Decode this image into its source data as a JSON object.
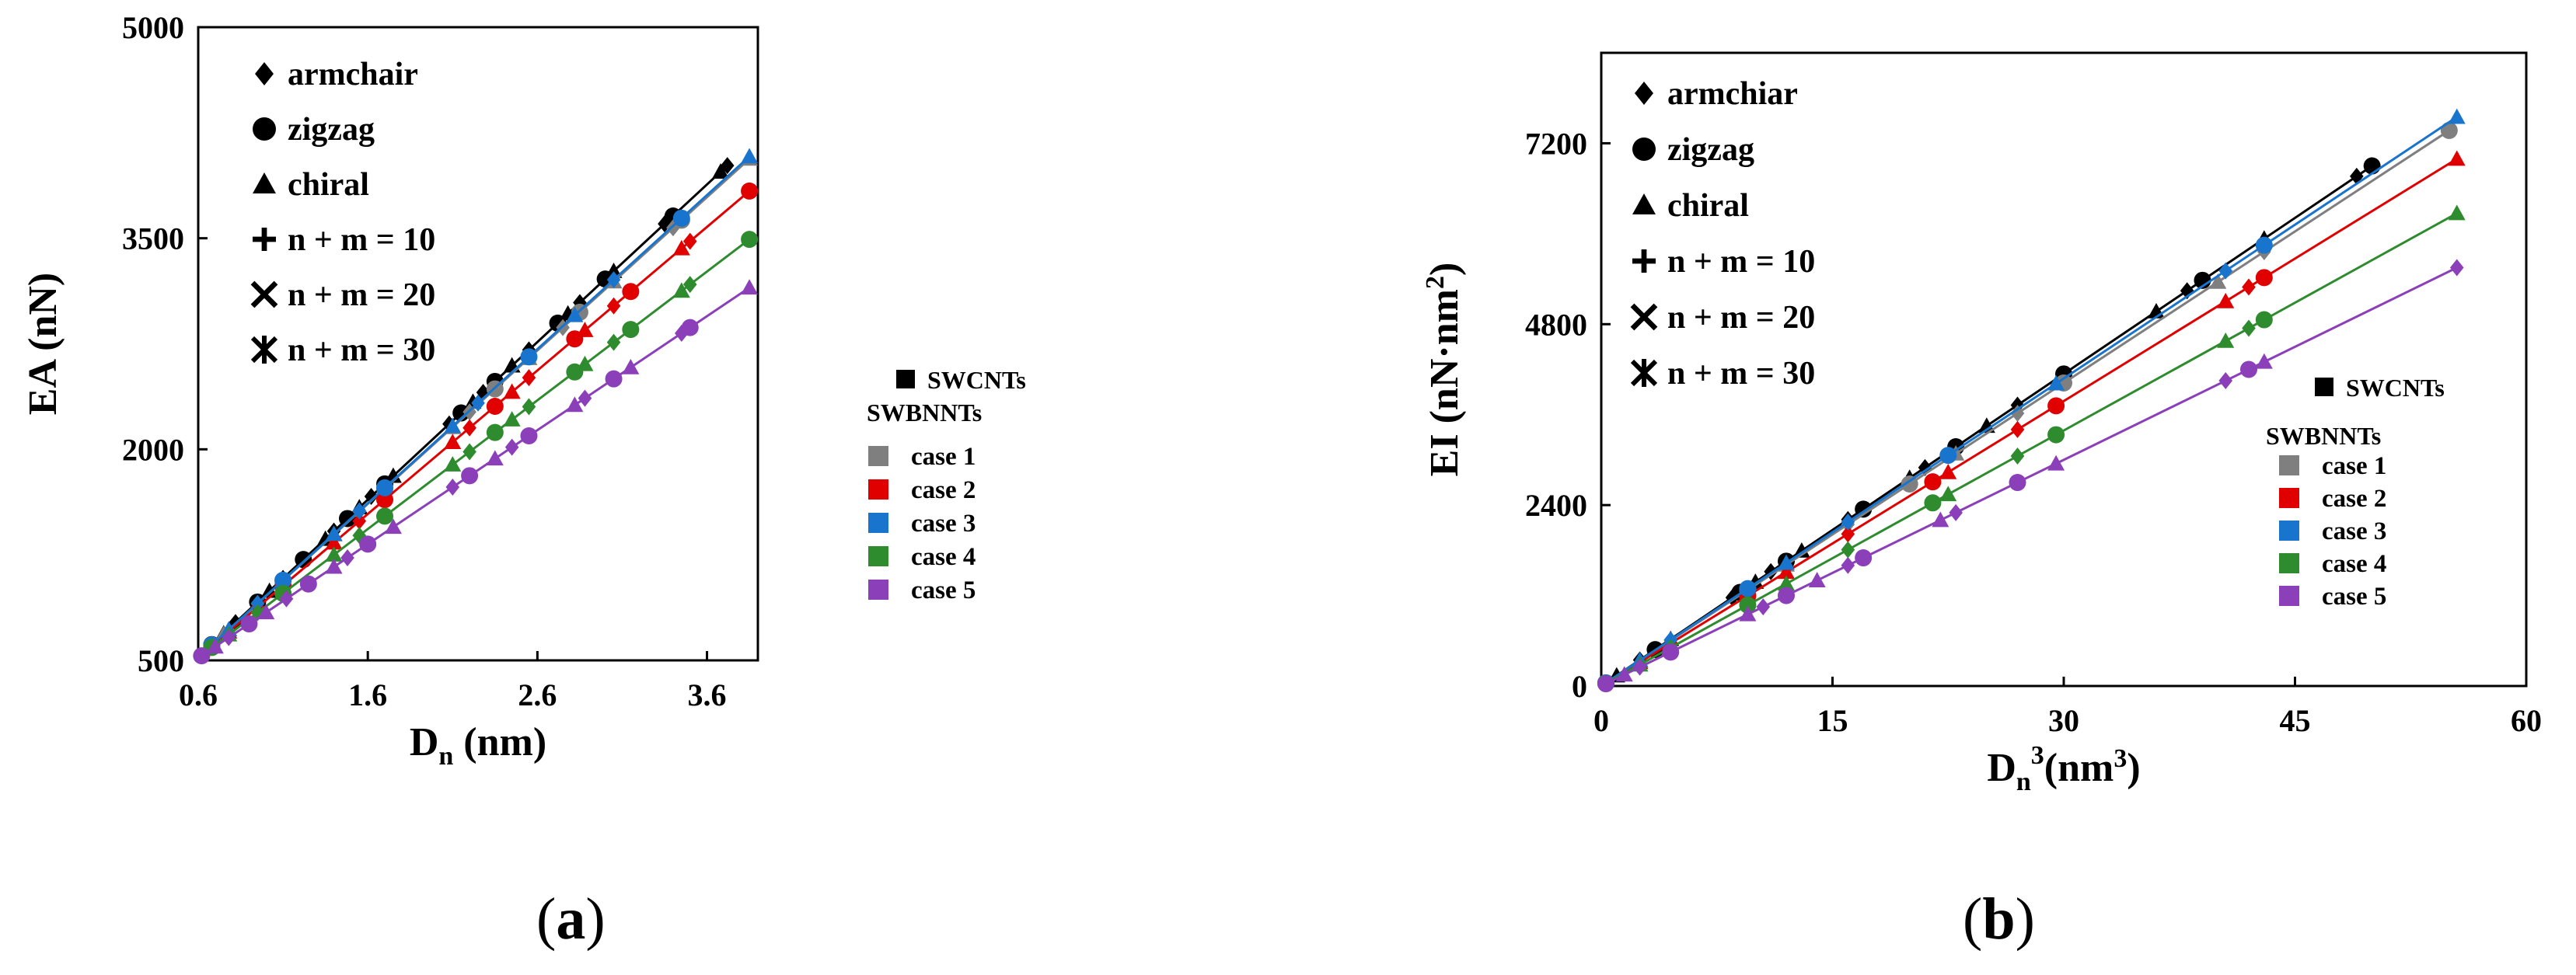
{
  "figure": {
    "panel_a_label_open": "(",
    "panel_a_label_letter": "a",
    "panel_a_label_close": ")",
    "panel_b_label_open": "(",
    "panel_b_label_letter": "b",
    "panel_b_label_close": ")"
  },
  "chart_data": [
    {
      "id": "a",
      "type": "scatter",
      "title": "",
      "ylabel": "EA (nN)",
      "xlabel_main": "D",
      "xlabel_sub": "n",
      "xlabel_rest": " (nm)",
      "xlim": [
        0.6,
        3.9
      ],
      "ylim": [
        500,
        5000
      ],
      "xticks": [
        "0.6",
        "1.6",
        "2.6",
        "3.6"
      ],
      "xtick_values": [
        0.6,
        1.6,
        2.6,
        3.6
      ],
      "yticks": [
        "500",
        "2000",
        "3500",
        "5000"
      ],
      "ytick_values": [
        500,
        2000,
        3500,
        5000
      ],
      "grid": false,
      "legend_markers": [
        {
          "symbol": "diamond",
          "label": "armchair"
        },
        {
          "symbol": "circle",
          "label": "zigzag"
        },
        {
          "symbol": "triangle",
          "label": "chiral"
        },
        {
          "symbol": "plus",
          "label": "n + m = 10"
        },
        {
          "symbol": "cross",
          "label": "n + m = 20"
        },
        {
          "symbol": "star",
          "label": "n + m = 30"
        }
      ],
      "legend_series_title_1": "SWCNTs",
      "legend_series_title_2": "SWBNNTs",
      "series": [
        {
          "name": "SWCNTs",
          "color": "#000000",
          "slope": 1120,
          "x": [
            0.68,
            0.75,
            0.82,
            0.95,
            1.02,
            1.1,
            1.22,
            1.35,
            1.4,
            1.48,
            1.55,
            1.62,
            1.7,
            1.75,
            2.08,
            2.15,
            2.22,
            2.28,
            2.35,
            2.45,
            2.55,
            2.72,
            2.78,
            2.85,
            3.0,
            3.05,
            3.35,
            3.4,
            3.68,
            3.72
          ]
        },
        {
          "name": "case 1",
          "color": "#7f7f7f",
          "slope": 1090,
          "x": [
            0.68,
            0.75,
            0.95,
            1.1,
            1.4,
            1.55,
            1.7,
            2.1,
            2.2,
            2.35,
            2.55,
            2.75,
            2.85,
            3.05,
            3.4,
            3.45,
            3.85
          ]
        },
        {
          "name": "case 2",
          "color": "#e00000",
          "slope": 1020,
          "x": [
            0.68,
            0.78,
            0.95,
            1.1,
            1.4,
            1.55,
            1.7,
            2.1,
            2.2,
            2.35,
            2.45,
            2.55,
            2.82,
            2.88,
            3.05,
            3.15,
            3.45,
            3.5,
            3.85
          ]
        },
        {
          "name": "case 3",
          "color": "#1874cd",
          "slope": 1095,
          "x": [
            0.68,
            0.78,
            0.95,
            1.1,
            1.4,
            1.55,
            1.7,
            2.1,
            2.25,
            2.55,
            2.82,
            3.05,
            3.45,
            3.85
          ]
        },
        {
          "name": "case 4",
          "color": "#2e8b2e",
          "slope": 915,
          "x": [
            0.68,
            0.78,
            0.95,
            1.1,
            1.4,
            1.55,
            1.7,
            2.1,
            2.2,
            2.35,
            2.45,
            2.55,
            2.82,
            2.88,
            3.05,
            3.15,
            3.45,
            3.5,
            3.85
          ]
        },
        {
          "name": "case 5",
          "color": "#8b3fb8",
          "slope": 810,
          "x": [
            0.62,
            0.7,
            0.78,
            0.9,
            1.0,
            1.12,
            1.25,
            1.4,
            1.48,
            1.6,
            1.75,
            2.1,
            2.2,
            2.35,
            2.45,
            2.55,
            2.82,
            2.88,
            3.05,
            3.15,
            3.45,
            3.5,
            3.85
          ]
        }
      ]
    },
    {
      "id": "b",
      "type": "scatter",
      "title": "",
      "ylabel": "EI (nN·nm",
      "ylabel_sup": "2",
      "ylabel_close": ")",
      "xlabel_main": "D",
      "xlabel_sub": "n",
      "xlabel_sup": "3",
      "xlabel_rest": "(nm",
      "xlabel_sup2": "3",
      "xlabel_close": ")",
      "xlim": [
        0,
        60
      ],
      "ylim": [
        0,
        8400
      ],
      "xticks": [
        "0",
        "15",
        "30",
        "45",
        "60"
      ],
      "xtick_values": [
        0,
        15,
        30,
        45,
        60
      ],
      "yticks": [
        "0",
        "2400",
        "4800",
        "7200"
      ],
      "ytick_values": [
        0,
        2400,
        4800,
        7200
      ],
      "grid": false,
      "legend_markers": [
        {
          "symbol": "diamond",
          "label": "armchiar"
        },
        {
          "symbol": "circle",
          "label": "zigzag"
        },
        {
          "symbol": "triangle",
          "label": "chiral"
        },
        {
          "symbol": "plus",
          "label": "n + m = 10"
        },
        {
          "symbol": "cross",
          "label": "n + m = 20"
        },
        {
          "symbol": "star",
          "label": "n + m = 30"
        }
      ],
      "legend_series_title_1": "SWCNTs",
      "legend_series_title_2": "SWBNNTs",
      "series": [
        {
          "name": "SWCNTs",
          "color": "#000000",
          "slope": 138,
          "x": [
            0.3,
            1.0,
            2.5,
            3.5,
            4.5,
            8.5,
            9.0,
            10.0,
            11.0,
            12.0,
            13.0,
            16.0,
            17.0,
            20.0,
            21.0,
            23.0,
            25.0,
            27.0,
            30.0,
            36.0,
            38.0,
            39.0,
            43.0,
            49.0,
            50.0
          ]
        },
        {
          "name": "case 1",
          "color": "#7f7f7f",
          "slope": 134,
          "x": [
            0.3,
            2.5,
            4.5,
            9.5,
            12.0,
            16.0,
            20.0,
            23.0,
            27.0,
            30.0,
            40.0,
            43.0,
            55.0
          ]
        },
        {
          "name": "case 2",
          "color": "#e00000",
          "slope": 126,
          "x": [
            0.3,
            2.5,
            4.5,
            9.5,
            12.0,
            16.0,
            21.5,
            22.5,
            27.0,
            29.5,
            40.5,
            42.0,
            43.0,
            55.5
          ]
        },
        {
          "name": "case 3",
          "color": "#1874cd",
          "slope": 136,
          "x": [
            0.3,
            2.5,
            4.5,
            9.5,
            12.0,
            16.0,
            22.5,
            29.5,
            40.5,
            43.0,
            55.5
          ]
        },
        {
          "name": "case 4",
          "color": "#2e8b2e",
          "slope": 113,
          "x": [
            0.3,
            2.5,
            4.5,
            9.5,
            12.0,
            16.0,
            21.5,
            22.5,
            27.0,
            29.5,
            40.5,
            42.0,
            43.0,
            55.5
          ]
        },
        {
          "name": "case 5",
          "color": "#8b3fb8",
          "slope": 100,
          "x": [
            0.3,
            1.5,
            2.5,
            4.5,
            9.5,
            10.5,
            12.0,
            14.0,
            16.0,
            17.0,
            22.0,
            23.0,
            27.0,
            29.5,
            40.5,
            42.0,
            43.0,
            55.5
          ]
        }
      ]
    }
  ]
}
